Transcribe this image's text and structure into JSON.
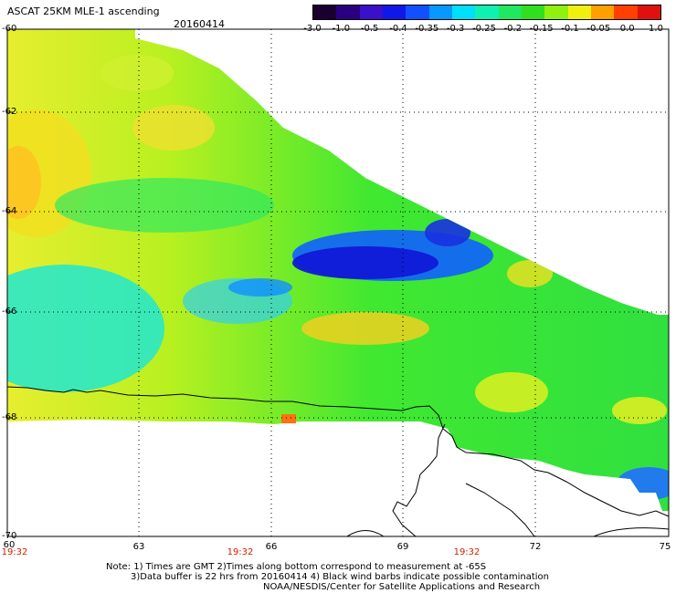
{
  "title": "ASCAT 25KM MLE-1 ascending",
  "date": "20160414",
  "colorbar": {
    "labels": [
      "-3.0",
      "-1.0",
      "-0.5",
      "-0.4",
      "-0.35",
      "-0.3",
      "-0.25",
      "-0.2",
      "-0.15",
      "-0.1",
      "-0.05",
      "0.0",
      "1.0"
    ],
    "colors": [
      "#1a0030",
      "#2a0080",
      "#3a10c8",
      "#1018e8",
      "#1050ff",
      "#0898ff",
      "#00e0f8",
      "#10f0b0",
      "#20e860",
      "#30e020",
      "#90f010",
      "#f0f010",
      "#ffa000",
      "#ff4000",
      "#e01010"
    ]
  },
  "map": {
    "lat_labels": [
      "-60",
      "-62",
      "-64",
      "-66",
      "-68",
      "-70"
    ],
    "lon_labels": [
      "60",
      "63",
      "66",
      "69",
      "72",
      "75"
    ],
    "time_labels": [
      "19:32",
      "19:32",
      "19:32"
    ]
  },
  "notes": [
    "Note: 1) Times are GMT 2)Times along bottom correspond to measurement at -65S",
    "3)Data buffer is 22 hrs from 20160414 4) Black wind barbs indicate possible contamination",
    "NOAA/NESDIS/Center for Satellite Applications and Research"
  ]
}
